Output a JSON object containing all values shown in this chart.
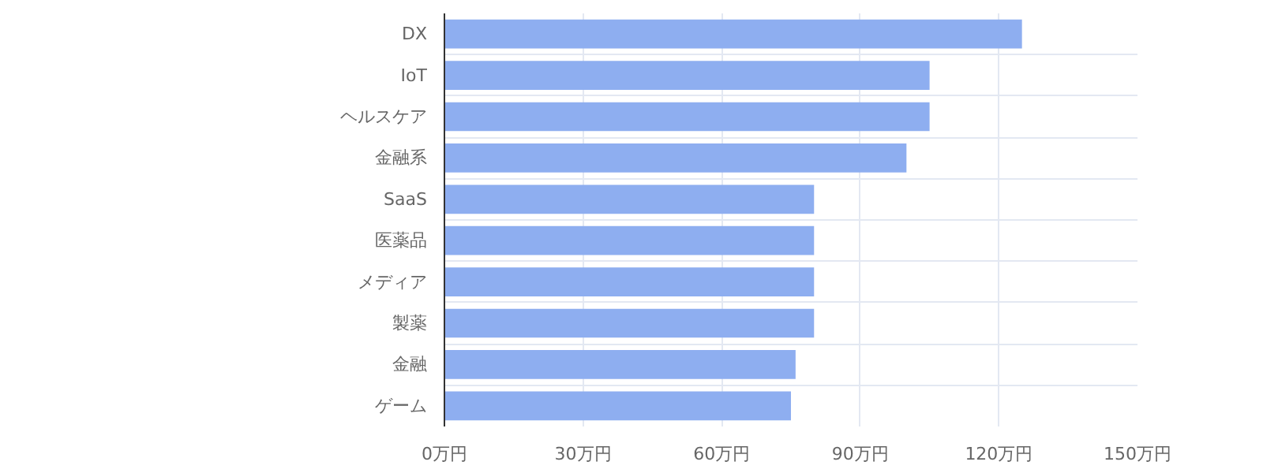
{
  "chart_data": {
    "type": "bar",
    "orientation": "horizontal",
    "categories": [
      "DX",
      "IoT",
      "ヘルスケア",
      "金融系",
      "SaaS",
      "医薬品",
      "メディア",
      "製薬",
      "金融",
      "ゲーム"
    ],
    "values": [
      125,
      105,
      105,
      100,
      80,
      80,
      80,
      80,
      76,
      75
    ],
    "color": "#8eaef0",
    "xlim": [
      0,
      150
    ],
    "xticks": [
      {
        "value": 0,
        "label": "0万円"
      },
      {
        "value": 30,
        "label": "30万円"
      },
      {
        "value": 60,
        "label": "60万円"
      },
      {
        "value": 90,
        "label": "90万円"
      },
      {
        "value": 120,
        "label": "120万円"
      },
      {
        "value": 150,
        "label": "150万円"
      }
    ],
    "grid": true
  }
}
